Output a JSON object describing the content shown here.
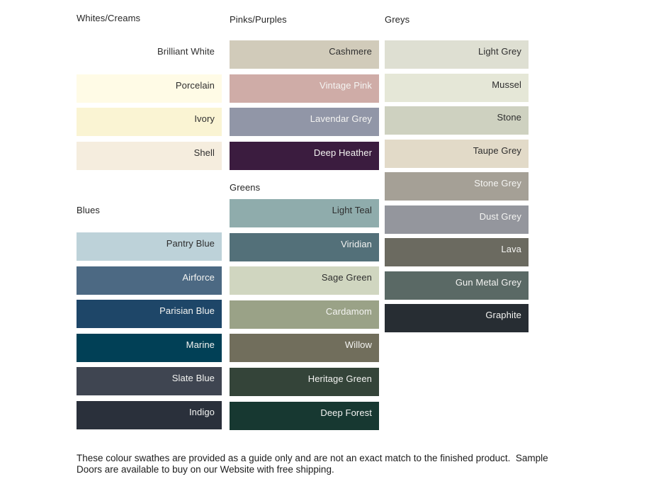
{
  "sections": [
    {
      "title": "Whites/Creams",
      "swatches": [
        {
          "name": "Brilliant White",
          "color": "#FFFFFF",
          "text": "dark"
        },
        {
          "name": "Porcelain",
          "color": "#FFFBE6",
          "text": "dark"
        },
        {
          "name": "Ivory",
          "color": "#FAF4D3",
          "text": "dark"
        },
        {
          "name": "Shell",
          "color": "#F5EDDE",
          "text": "dark"
        }
      ]
    },
    {
      "title": "Blues",
      "swatches": [
        {
          "name": "Pantry Blue",
          "color": "#BDD2D9",
          "text": "dark"
        },
        {
          "name": "Airforce",
          "color": "#4C6983",
          "text": "light"
        },
        {
          "name": "Parisian Blue",
          "color": "#1E4668",
          "text": "light"
        },
        {
          "name": "Marine",
          "color": "#014056",
          "text": "light"
        },
        {
          "name": "Slate Blue",
          "color": "#3F4551",
          "text": "light"
        },
        {
          "name": "Indigo",
          "color": "#2A303B",
          "text": "light"
        }
      ]
    },
    {
      "title": "Pinks/Purples",
      "swatches": [
        {
          "name": "Cashmere",
          "color": "#D1CBBA",
          "text": "dark"
        },
        {
          "name": "Vintage Pink",
          "color": "#CFACA7",
          "text": "light"
        },
        {
          "name": "Lavendar Grey",
          "color": "#9196A7",
          "text": "light"
        },
        {
          "name": "Deep Heather",
          "color": "#3B1C3F",
          "text": "light"
        }
      ]
    },
    {
      "title": "Greens",
      "swatches": [
        {
          "name": "Light Teal",
          "color": "#8FACAC",
          "text": "dark"
        },
        {
          "name": "Viridian",
          "color": "#537079",
          "text": "light"
        },
        {
          "name": "Sage Green",
          "color": "#D0D6C0",
          "text": "dark"
        },
        {
          "name": "Cardamom",
          "color": "#9AA287",
          "text": "light"
        },
        {
          "name": "Willow",
          "color": "#716E5C",
          "text": "light"
        },
        {
          "name": "Heritage Green",
          "color": "#344439",
          "text": "light"
        },
        {
          "name": "Deep Forest",
          "color": "#173831",
          "text": "light"
        }
      ]
    },
    {
      "title": "Greys",
      "swatches": [
        {
          "name": "Light Grey",
          "color": "#DEDFD2",
          "text": "dark"
        },
        {
          "name": "Mussel",
          "color": "#E5E7D7",
          "text": "dark"
        },
        {
          "name": "Stone",
          "color": "#CED1C0",
          "text": "dark"
        },
        {
          "name": "Taupe Grey",
          "color": "#E2DAC8",
          "text": "dark"
        },
        {
          "name": "Stone Grey",
          "color": "#A5A096",
          "text": "light"
        },
        {
          "name": "Dust Grey",
          "color": "#94969D",
          "text": "light"
        },
        {
          "name": "Lava",
          "color": "#6B6A60",
          "text": "light"
        },
        {
          "name": "Gun Metal Grey",
          "color": "#5A6965",
          "text": "light"
        },
        {
          "name": "Graphite",
          "color": "#272D33",
          "text": "light"
        }
      ]
    }
  ],
  "footer": {
    "line1": "These colour swathes are provided as a guide only and are not an exact match to the finished product.  Sample",
    "line2": "Doors are available to buy on our Website with free shipping."
  },
  "colors": {
    "background": "#FFFFFF",
    "dark_text": "#2E2E2E",
    "light_text": "#F4F4F2"
  }
}
